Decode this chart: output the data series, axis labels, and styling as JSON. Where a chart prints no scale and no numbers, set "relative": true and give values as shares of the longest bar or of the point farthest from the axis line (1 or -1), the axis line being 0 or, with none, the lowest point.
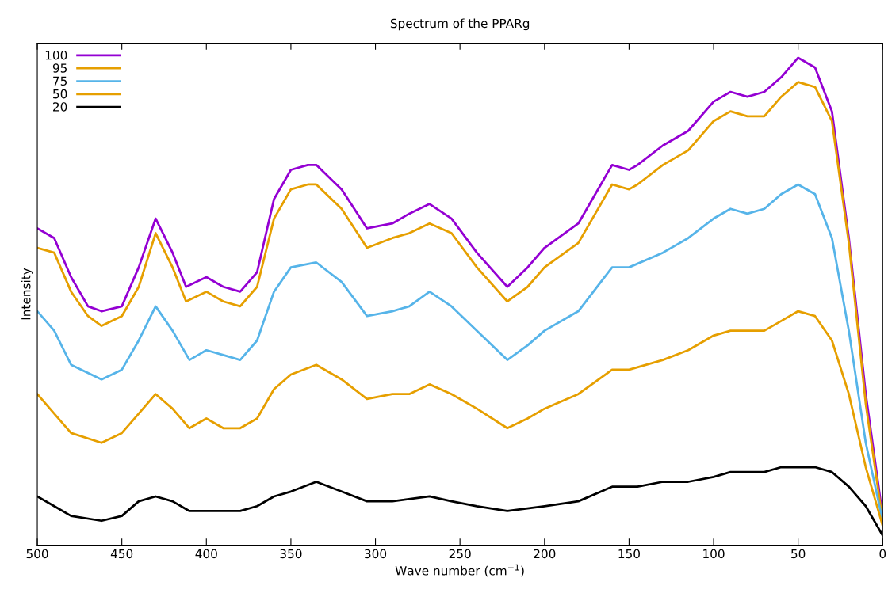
{
  "chart_data": {
    "type": "line",
    "title": "Spectrum of the PPARg",
    "xlabel": "Wave number (cm$^{−1}$)",
    "ylabel": "Intensity",
    "relative": true,
    "xlim": [
      500,
      0
    ],
    "xticks": [
      500,
      450,
      400,
      350,
      300,
      250,
      200,
      150,
      100,
      50,
      0
    ],
    "grid": false,
    "legend": "top left",
    "line_style": "solid",
    "series": [
      {
        "name": "100",
        "color": "#9400d3",
        "x": [
          500,
          490,
          480,
          470,
          462,
          450,
          440,
          430,
          420,
          412,
          400,
          390,
          380,
          370,
          360,
          350,
          340,
          335,
          320,
          305,
          290,
          280,
          268,
          255,
          240,
          222,
          210,
          200,
          180,
          160,
          150,
          145,
          130,
          115,
          100,
          90,
          80,
          70,
          60,
          50,
          40,
          30,
          20,
          10,
          0
        ],
        "values": [
          0.65,
          0.63,
          0.55,
          0.49,
          0.48,
          0.49,
          0.57,
          0.67,
          0.6,
          0.53,
          0.55,
          0.53,
          0.52,
          0.56,
          0.71,
          0.77,
          0.78,
          0.78,
          0.73,
          0.65,
          0.66,
          0.68,
          0.7,
          0.67,
          0.6,
          0.53,
          0.57,
          0.61,
          0.66,
          0.78,
          0.77,
          0.78,
          0.82,
          0.85,
          0.91,
          0.93,
          0.92,
          0.93,
          0.96,
          1.0,
          0.98,
          0.89,
          0.63,
          0.31,
          0.06
        ]
      },
      {
        "name": "95",
        "color": "#e69f00",
        "x": [
          500,
          490,
          480,
          470,
          462,
          450,
          440,
          430,
          420,
          412,
          400,
          390,
          380,
          370,
          360,
          350,
          340,
          335,
          320,
          305,
          290,
          280,
          268,
          255,
          240,
          222,
          210,
          200,
          180,
          160,
          150,
          145,
          130,
          115,
          100,
          90,
          80,
          70,
          60,
          50,
          40,
          30,
          20,
          10,
          0
        ],
        "values": [
          0.61,
          0.6,
          0.52,
          0.47,
          0.45,
          0.47,
          0.53,
          0.64,
          0.57,
          0.5,
          0.52,
          0.5,
          0.49,
          0.53,
          0.67,
          0.73,
          0.74,
          0.74,
          0.69,
          0.61,
          0.63,
          0.64,
          0.66,
          0.64,
          0.57,
          0.5,
          0.53,
          0.57,
          0.62,
          0.74,
          0.73,
          0.74,
          0.78,
          0.81,
          0.87,
          0.89,
          0.88,
          0.88,
          0.92,
          0.95,
          0.94,
          0.87,
          0.62,
          0.29,
          0.05
        ]
      },
      {
        "name": "75",
        "color": "#56b4e9",
        "x": [
          500,
          490,
          480,
          462,
          450,
          440,
          430,
          420,
          410,
          400,
          390,
          380,
          370,
          360,
          350,
          335,
          320,
          305,
          290,
          280,
          268,
          255,
          240,
          222,
          210,
          200,
          180,
          160,
          150,
          130,
          115,
          100,
          90,
          80,
          70,
          60,
          50,
          40,
          30,
          20,
          10,
          0
        ],
        "values": [
          0.48,
          0.44,
          0.37,
          0.34,
          0.36,
          0.42,
          0.49,
          0.44,
          0.38,
          0.4,
          0.39,
          0.38,
          0.42,
          0.52,
          0.57,
          0.58,
          0.54,
          0.47,
          0.48,
          0.49,
          0.52,
          0.49,
          0.44,
          0.38,
          0.41,
          0.44,
          0.48,
          0.57,
          0.57,
          0.6,
          0.63,
          0.67,
          0.69,
          0.68,
          0.69,
          0.72,
          0.74,
          0.72,
          0.63,
          0.44,
          0.21,
          0.05
        ]
      },
      {
        "name": "50",
        "color": "#e69f00",
        "x": [
          500,
          490,
          480,
          462,
          450,
          440,
          430,
          420,
          410,
          400,
          390,
          380,
          370,
          360,
          350,
          335,
          320,
          305,
          290,
          280,
          268,
          255,
          240,
          222,
          210,
          200,
          180,
          160,
          150,
          130,
          115,
          100,
          90,
          80,
          70,
          60,
          50,
          40,
          30,
          20,
          10,
          0
        ],
        "values": [
          0.31,
          0.27,
          0.23,
          0.21,
          0.23,
          0.27,
          0.31,
          0.28,
          0.24,
          0.26,
          0.24,
          0.24,
          0.26,
          0.32,
          0.35,
          0.37,
          0.34,
          0.3,
          0.31,
          0.31,
          0.33,
          0.31,
          0.28,
          0.24,
          0.26,
          0.28,
          0.31,
          0.36,
          0.36,
          0.38,
          0.4,
          0.43,
          0.44,
          0.44,
          0.44,
          0.46,
          0.48,
          0.47,
          0.42,
          0.31,
          0.16,
          0.04
        ]
      },
      {
        "name": "20",
        "color": "#000000",
        "x": [
          500,
          490,
          480,
          462,
          450,
          440,
          430,
          420,
          410,
          400,
          390,
          380,
          370,
          360,
          350,
          335,
          320,
          305,
          290,
          268,
          255,
          240,
          222,
          200,
          180,
          160,
          145,
          130,
          115,
          100,
          90,
          80,
          70,
          60,
          50,
          40,
          30,
          20,
          10,
          0
        ],
        "values": [
          0.1,
          0.08,
          0.06,
          0.05,
          0.06,
          0.09,
          0.1,
          0.09,
          0.07,
          0.07,
          0.07,
          0.07,
          0.08,
          0.1,
          0.11,
          0.13,
          0.11,
          0.09,
          0.09,
          0.1,
          0.09,
          0.08,
          0.07,
          0.08,
          0.09,
          0.12,
          0.12,
          0.13,
          0.13,
          0.14,
          0.15,
          0.15,
          0.15,
          0.16,
          0.16,
          0.16,
          0.15,
          0.12,
          0.08,
          0.02
        ]
      }
    ]
  }
}
